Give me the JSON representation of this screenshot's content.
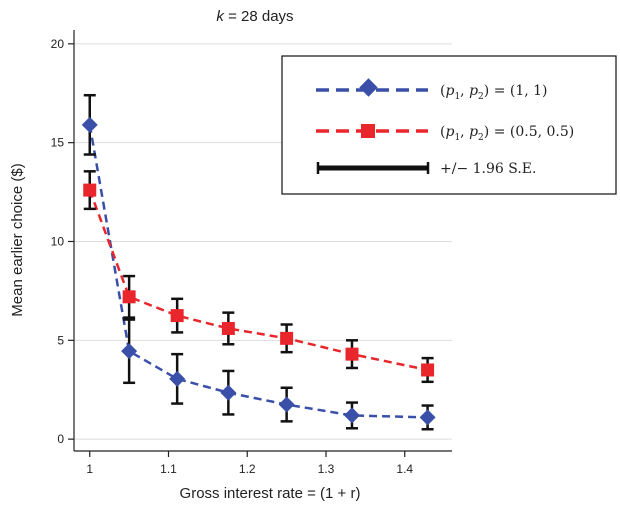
{
  "chart_data": {
    "type": "line",
    "title_var": "k",
    "title_rest": " = 28 days",
    "xlabel": "Gross interest rate = (1 + r)",
    "ylabel": "Mean earlier choice ($)",
    "xlim": [
      0.98,
      1.46
    ],
    "ylim": [
      -0.6,
      20.7
    ],
    "xticks": [
      1,
      1.1,
      1.2,
      1.3,
      1.4
    ],
    "xtick_labels": [
      "1",
      "1.1",
      "1.2",
      "1.3",
      "1.4"
    ],
    "yticks": [
      0,
      5,
      10,
      15,
      20
    ],
    "ytick_labels": [
      "0",
      "5",
      "10",
      "15",
      "20"
    ],
    "grid": "horizontal",
    "legend_position": "top-right",
    "x": [
      1.0,
      1.05,
      1.111,
      1.176,
      1.25,
      1.333,
      1.429
    ],
    "series": [
      {
        "name": "(p1, p2) = (1, 1)",
        "marker": "diamond",
        "color": "#3a4fa8",
        "values": [
          15.9,
          4.45,
          3.05,
          2.35,
          1.75,
          1.2,
          1.1
        ],
        "ci": [
          1.5,
          1.6,
          1.25,
          1.1,
          0.85,
          0.65,
          0.6
        ]
      },
      {
        "name": "(p1, p2) = (0.5, 0.5)",
        "marker": "square",
        "color": "#e8262c",
        "values": [
          12.6,
          7.2,
          6.25,
          5.6,
          5.1,
          4.3,
          3.5
        ],
        "ci": [
          0.95,
          1.05,
          0.85,
          0.8,
          0.7,
          0.7,
          0.6
        ]
      }
    ],
    "legend": [
      {
        "p": "p",
        "sub1": "1",
        "sub2": "2",
        "rest": "  = (1, 1)"
      },
      {
        "p": "p",
        "sub1": "1",
        "sub2": "2",
        "rest": "  = (0.5, 0.5)"
      },
      {
        "text": "+/− 1.96 S.E."
      }
    ],
    "colors": {
      "blue": "#3a4fa8",
      "red": "#e8262c",
      "grid": "#dedede",
      "errorbar": "#111111"
    }
  }
}
